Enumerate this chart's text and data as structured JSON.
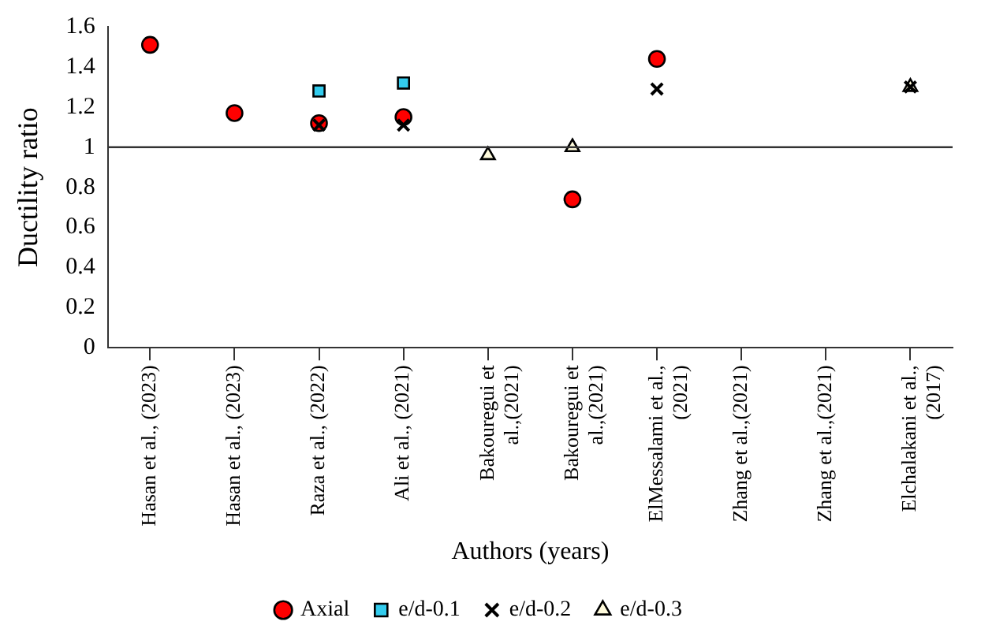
{
  "chart_data": {
    "type": "scatter",
    "xlabel": "Authors (years)",
    "ylabel": "Ductility ratio",
    "categories": [
      "Hasan et al., (2023)",
      "Hasan et al., (2023)",
      "Raza et al., (2022)",
      "Ali et al., (2021)",
      "Bakouregui et al.,(2021)",
      "Bakouregui et al.,(2021)",
      "ElMessalami et al., (2021)",
      "Zhang et al.,(2021)",
      "Zhang et al.,(2021)",
      "Elchalakani et al., (2017)"
    ],
    "series": [
      {
        "name": "Axial",
        "color": "#ff0000",
        "marker": "circle",
        "values": [
          1.51,
          1.17,
          1.12,
          1.15,
          null,
          0.74,
          1.44,
          null,
          null,
          null
        ]
      },
      {
        "name": "e/d-0.1",
        "color": "#33ccee",
        "marker": "square",
        "values": [
          null,
          null,
          1.28,
          1.32,
          null,
          null,
          null,
          null,
          null,
          null
        ]
      },
      {
        "name": "e/d-0.2",
        "color": "#000000",
        "marker": "cross",
        "values": [
          null,
          null,
          1.11,
          1.11,
          null,
          null,
          1.29,
          null,
          null,
          1.3
        ]
      },
      {
        "name": "e/d-0.3",
        "color": "#fffbdc",
        "marker": "triangle",
        "values": [
          null,
          null,
          null,
          null,
          0.96,
          1.0,
          null,
          null,
          null,
          1.3
        ]
      }
    ],
    "ylim": [
      0,
      1.6
    ],
    "yticks": [
      0,
      0.2,
      0.4,
      0.6,
      0.8,
      1,
      1.2,
      1.4,
      1.6
    ],
    "ref_lines": [
      {
        "axis": "y",
        "value": 1
      }
    ],
    "grid": false,
    "legend": "bottom"
  }
}
